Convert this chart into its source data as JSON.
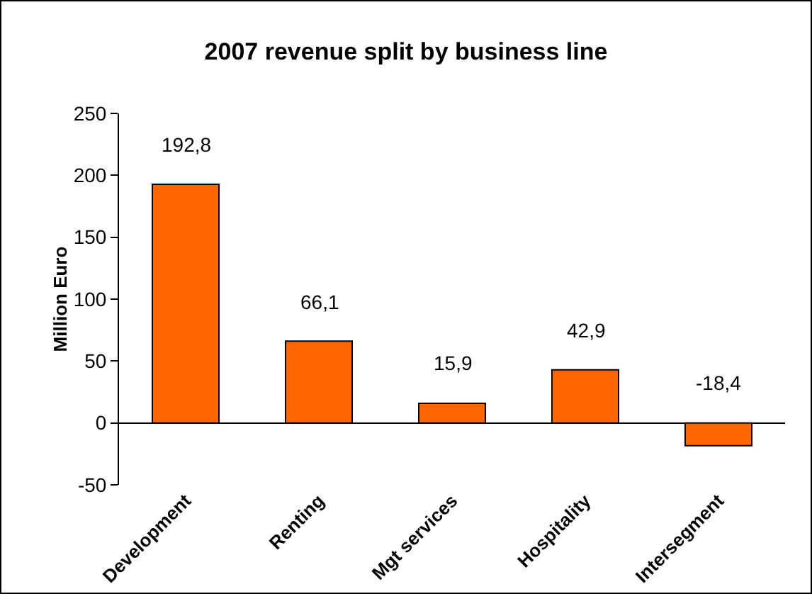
{
  "chart_data": {
    "type": "bar",
    "title": "2007 revenue split by business line",
    "ylabel": "Million Euro",
    "categories": [
      "Development",
      "Renting",
      "Mgt services",
      "Hospitality",
      "Intersegment"
    ],
    "values": [
      192.8,
      66.1,
      15.9,
      42.9,
      -18.4
    ],
    "value_labels": [
      "192,8",
      "66,1",
      "15,9",
      "42,9",
      "-18,4"
    ],
    "color": "#ff6600",
    "ylim": [
      -50,
      250
    ],
    "yticks": [
      -50,
      0,
      50,
      100,
      150,
      200,
      250
    ],
    "legend": false
  }
}
